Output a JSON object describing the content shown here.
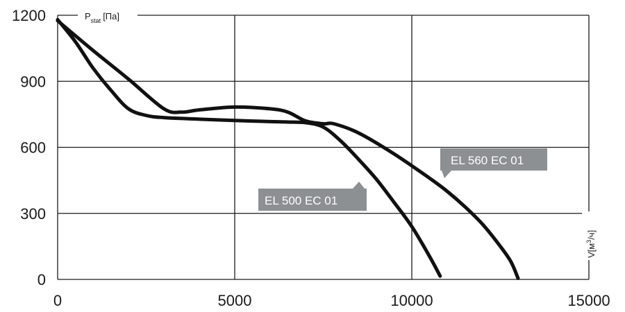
{
  "chart_data": {
    "type": "line",
    "title": "",
    "ylabel": "P",
    "ylabel_sub": "stat",
    "ylabel_unit": "[Па]",
    "xlabel_parts": [
      "V[м",
      "3",
      "/ч]"
    ],
    "xlim": [
      0,
      15000
    ],
    "ylim": [
      0,
      1200
    ],
    "x_ticks": [
      "0",
      "5000",
      "10000",
      "15000"
    ],
    "y_ticks": [
      "0",
      "300",
      "600",
      "900",
      "1200"
    ],
    "grid": true,
    "series": [
      {
        "name": "EL 500 EC 01",
        "x": [
          0,
          500,
          1000,
          1500,
          2000,
          2500,
          3000,
          4000,
          5000,
          6000,
          6500,
          7000,
          7500,
          8000,
          8500,
          9000,
          9500,
          10000,
          10500,
          10800
        ],
        "y": [
          1180,
          1080,
          960,
          860,
          775,
          745,
          735,
          728,
          722,
          717,
          715,
          712,
          692,
          628,
          545,
          455,
          350,
          240,
          105,
          15
        ]
      },
      {
        "name": "EL 560 EC 01",
        "x": [
          0,
          1000,
          2000,
          3000,
          3500,
          4000,
          5000,
          6000,
          6500,
          7000,
          7500,
          7800,
          8500,
          9500,
          10500,
          11000,
          11500,
          12000,
          12500,
          12800,
          13000
        ],
        "y": [
          1175,
          1040,
          910,
          775,
          760,
          770,
          783,
          775,
          760,
          720,
          707,
          707,
          665,
          570,
          460,
          400,
          330,
          250,
          150,
          80,
          5
        ]
      }
    ],
    "callouts": [
      {
        "text": "EL 500 EC 01"
      },
      {
        "text": "EL 560 EC 01"
      }
    ],
    "colors": {
      "line": "#111111",
      "grid": "#1a1a1a",
      "callout": "#8c9092"
    }
  }
}
